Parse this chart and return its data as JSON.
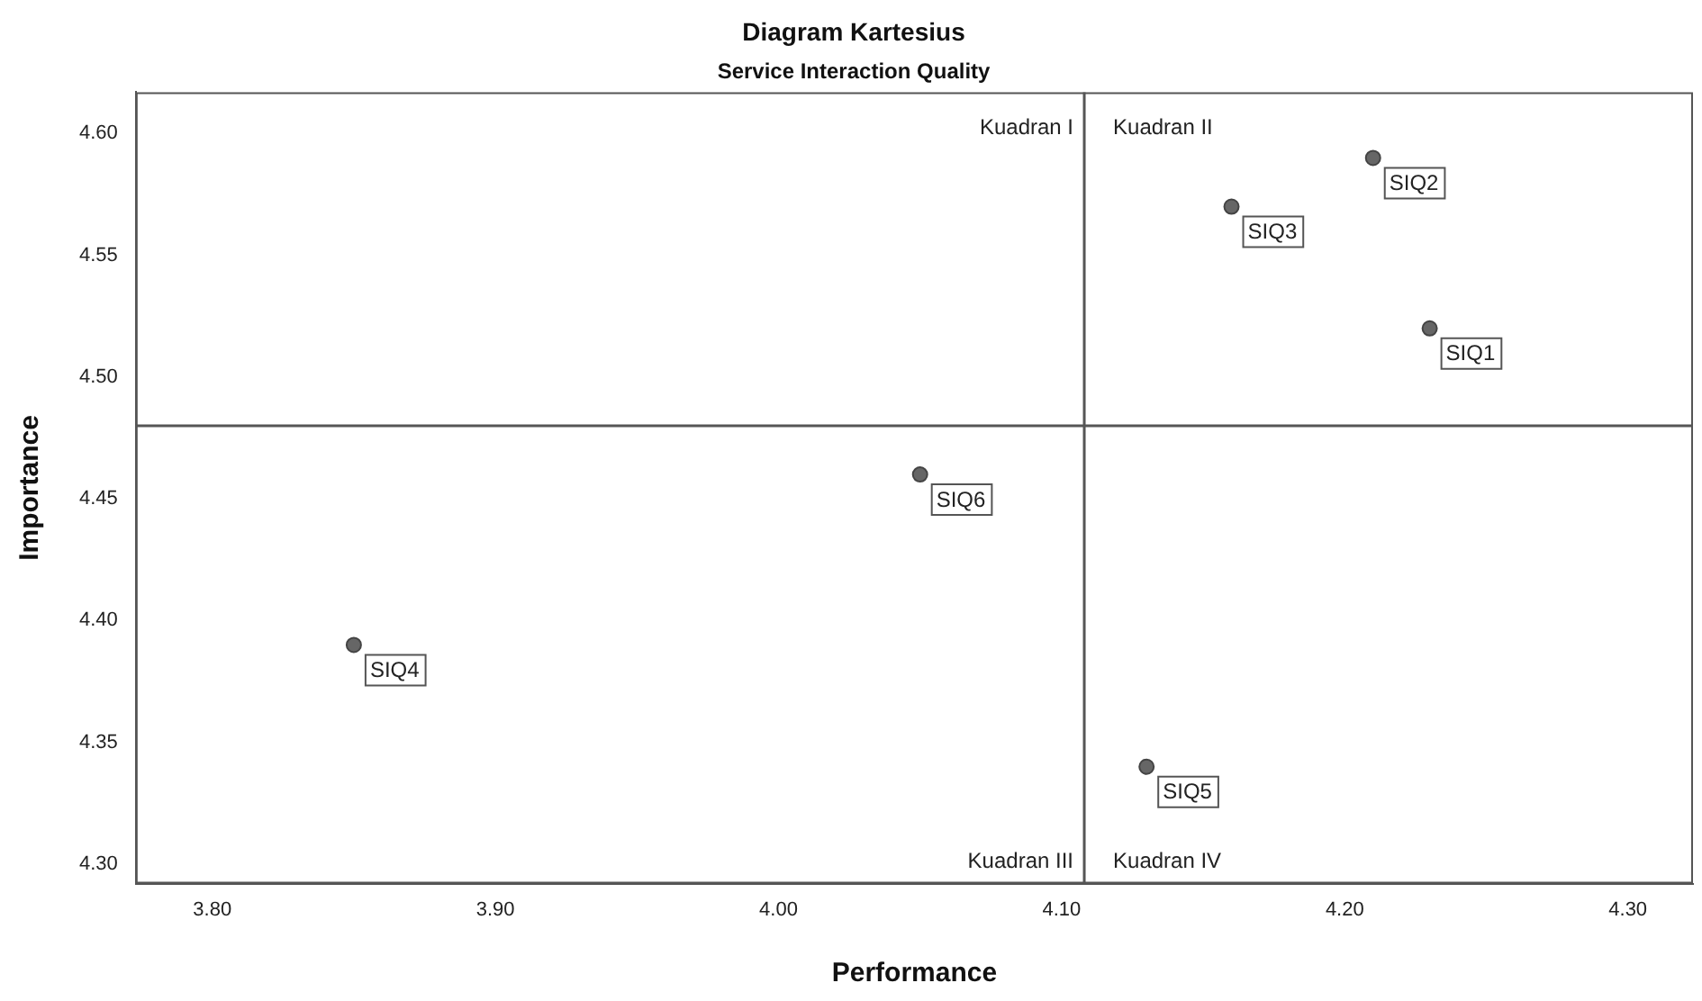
{
  "chart_data": {
    "type": "scatter",
    "title": "Diagram Kartesius",
    "subtitle": "Service Interaction Quality",
    "xlabel": "Performance",
    "ylabel": "Importance",
    "series": [
      {
        "color": "#666666",
        "x": [
          4.23,
          4.21,
          4.16,
          3.85,
          4.13,
          4.05
        ],
        "values": [
          4.52,
          4.59,
          4.57,
          4.39,
          4.34,
          4.46
        ]
      }
    ],
    "xlim": [
      3.773,
      4.323
    ],
    "xticks": [
      {
        "value": 3.8,
        "label": "3.80"
      },
      {
        "value": 3.9,
        "label": "3.90"
      },
      {
        "value": 4.0,
        "label": "4.00"
      },
      {
        "value": 4.1,
        "label": "4.10"
      },
      {
        "value": 4.2,
        "label": "4.20"
      },
      {
        "value": 4.3,
        "label": "4.30"
      }
    ],
    "ylim": [
      4.292,
      4.617
    ],
    "yticks": [
      {
        "value": 4.3,
        "label": "4.30"
      },
      {
        "value": 4.35,
        "label": "4.35"
      },
      {
        "value": 4.4,
        "label": "4.40"
      },
      {
        "value": 4.45,
        "label": "4.45"
      },
      {
        "value": 4.5,
        "label": "4.50"
      },
      {
        "value": 4.55,
        "label": "4.55"
      },
      {
        "value": 4.6,
        "label": "4.60"
      }
    ],
    "ref_lines": [
      {
        "axis": "x",
        "value": 4.108,
        "color": "#555555"
      },
      {
        "axis": "y",
        "value": 4.48,
        "color": "#555555"
      }
    ],
    "annotations": [
      "Kuadran I",
      "Kuadran II",
      "Kuadran III",
      "Kuadran IV",
      {
        "text": "SIQ1",
        "x": 4.23,
        "y": 4.52
      },
      {
        "text": "SIQ2",
        "x": 4.21,
        "y": 4.59
      },
      {
        "text": "SIQ3",
        "x": 4.16,
        "y": 4.57
      },
      {
        "text": "SIQ4",
        "x": 3.85,
        "y": 4.39
      },
      {
        "text": "SIQ5",
        "x": 4.13,
        "y": 4.34
      },
      {
        "text": "SIQ6",
        "x": 4.05,
        "y": 4.46
      }
    ],
    "grid": false,
    "legend": false,
    "marker": "circle"
  }
}
